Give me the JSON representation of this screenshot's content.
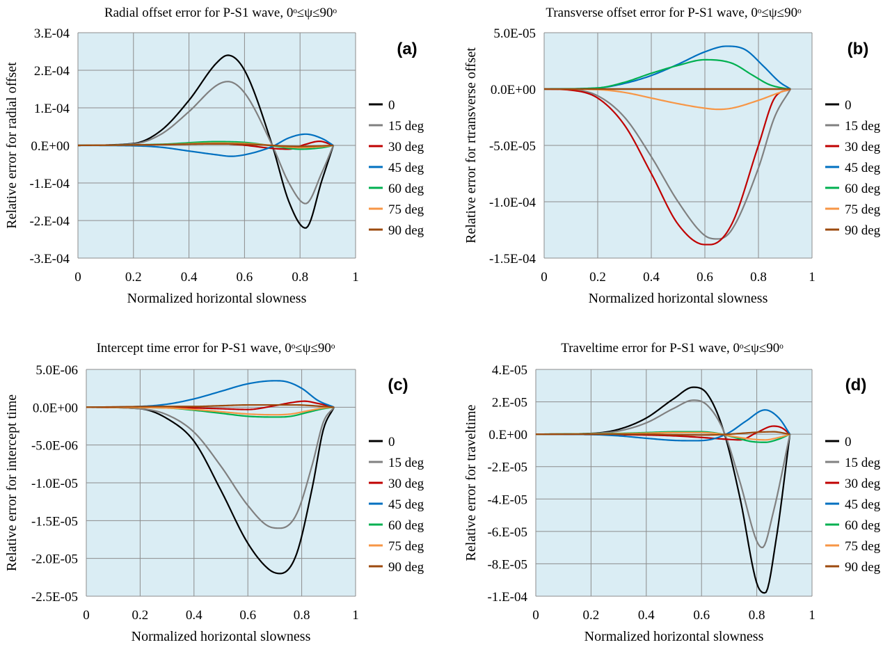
{
  "colors": {
    "plot_background": "#daedf4",
    "grid": "#8c8c8c",
    "series": [
      "#000000",
      "#808080",
      "#c00000",
      "#0070c0",
      "#00b050",
      "#f79646",
      "#9c4a0e"
    ]
  },
  "legend_entries": [
    "0",
    "15 deg",
    "30 deg",
    "45 deg",
    "60 deg",
    "75 deg",
    "90 deg"
  ],
  "chart_data": [
    {
      "id": "a",
      "type": "line",
      "panel_label": "(a)",
      "title": "Radial offset error for P-S1 wave, 0ᵒ≤ψ≤90ᵒ",
      "xlabel": "Normalized horizontal slowness",
      "ylabel": "Relative error for radial offset",
      "xlim": [
        0,
        1
      ],
      "ylim": [
        -0.0003,
        0.0003
      ],
      "xticks": [
        0,
        0.2,
        0.4,
        0.6,
        0.8,
        1
      ],
      "xtick_labels": [
        "0",
        "0.2",
        "0.4",
        "0.6",
        "0.8",
        "1"
      ],
      "yticks": [
        0.0003,
        0.0002,
        0.0001,
        0,
        -0.0001,
        -0.0002,
        -0.0003
      ],
      "ytick_labels": [
        "3.E-04",
        "2.E-04",
        "1.E-04",
        "0.E+00",
        "-1.E-04",
        "-2.E-04",
        "-3.E-04"
      ],
      "grid": true,
      "legend_position": "right",
      "series": [
        {
          "name": "0",
          "x": [
            0,
            0.2,
            0.3,
            0.4,
            0.5,
            0.54,
            0.6,
            0.7,
            0.76,
            0.82,
            0.88,
            0.92
          ],
          "y": [
            0,
            5e-06,
            4e-05,
            0.00012,
            0.00022,
            0.00024,
            0.0002,
            0.0,
            -0.00015,
            -0.00022,
            -9e-05,
            0
          ]
        },
        {
          "name": "15 deg",
          "x": [
            0,
            0.2,
            0.3,
            0.4,
            0.5,
            0.54,
            0.6,
            0.7,
            0.76,
            0.82,
            0.88,
            0.92
          ],
          "y": [
            0,
            4e-06,
            3e-05,
            9e-05,
            0.00016,
            0.00017,
            0.00014,
            0.0,
            -0.0001,
            -0.000155,
            -7e-05,
            0
          ]
        },
        {
          "name": "30 deg",
          "x": [
            0,
            0.3,
            0.5,
            0.6,
            0.7,
            0.76,
            0.82,
            0.87,
            0.92
          ],
          "y": [
            0,
            2e-06,
            5e-06,
            5e-07,
            -8e-06,
            -1e-05,
            3e-06,
            1.1e-05,
            0
          ]
        },
        {
          "name": "45 deg",
          "x": [
            0,
            0.2,
            0.3,
            0.4,
            0.5,
            0.55,
            0.6,
            0.7,
            0.76,
            0.82,
            0.88,
            0.92
          ],
          "y": [
            0,
            -1e-06,
            -5e-06,
            -1.5e-05,
            -2.5e-05,
            -2.9e-05,
            -2.5e-05,
            -3e-06,
            2e-05,
            3e-05,
            1.8e-05,
            0
          ]
        },
        {
          "name": "60 deg",
          "x": [
            0,
            0.3,
            0.5,
            0.6,
            0.7,
            0.8,
            0.88,
            0.92
          ],
          "y": [
            0,
            3e-06,
            1e-05,
            8e-06,
            -1e-06,
            -1e-05,
            -6e-06,
            0
          ]
        },
        {
          "name": "75 deg",
          "x": [
            0,
            0.3,
            0.5,
            0.6,
            0.7,
            0.8,
            0.88,
            0.92
          ],
          "y": [
            0,
            2e-06,
            6e-06,
            5e-06,
            0,
            -6e-06,
            -3e-06,
            0
          ]
        },
        {
          "name": "90 deg",
          "x": [
            0,
            0.3,
            0.5,
            0.6,
            0.7,
            0.8,
            0.88,
            0.92
          ],
          "y": [
            0,
            2e-06,
            4e-06,
            3e-06,
            0,
            -3e-06,
            -1e-06,
            0
          ]
        }
      ]
    },
    {
      "id": "b",
      "type": "line",
      "panel_label": "(b)",
      "title": "Transverse offset error for P-S1 wave, 0ᵒ≤ψ≤90ᵒ",
      "xlabel": "Normalized horizontal slowness",
      "ylabel": "Relative error for rtransverse offset",
      "xlim": [
        0,
        1
      ],
      "ylim": [
        -0.00015,
        5e-05
      ],
      "xticks": [
        0,
        0.2,
        0.4,
        0.6,
        0.8,
        1
      ],
      "xtick_labels": [
        "0",
        "0.2",
        "0.4",
        "0.6",
        "0.8",
        "1"
      ],
      "yticks": [
        5e-05,
        0,
        -5e-05,
        -0.0001,
        -0.00015
      ],
      "ytick_labels": [
        "5.0E-05",
        "0.0E+00",
        "-5.0E-05",
        "-1.0E-04",
        "-1.5E-04"
      ],
      "grid": true,
      "legend_position": "right",
      "series": [
        {
          "name": "0",
          "x": [
            0,
            0.92
          ],
          "y": [
            0,
            0
          ]
        },
        {
          "name": "15 deg",
          "x": [
            0,
            0.1,
            0.2,
            0.3,
            0.4,
            0.5,
            0.6,
            0.65,
            0.7,
            0.8,
            0.86,
            0.92
          ],
          "y": [
            0,
            -5e-07,
            -6e-06,
            -2.5e-05,
            -6e-05,
            -0.0001,
            -0.00013,
            -0.000133,
            -0.000125,
            -7e-05,
            -2.5e-05,
            0
          ]
        },
        {
          "name": "30 deg",
          "x": [
            0,
            0.1,
            0.2,
            0.3,
            0.4,
            0.5,
            0.6,
            0.62,
            0.7,
            0.8,
            0.86,
            0.92
          ],
          "y": [
            0,
            -1e-06,
            -8e-06,
            -3.2e-05,
            -7.5e-05,
            -0.00012,
            -0.000138,
            -0.000138,
            -0.00012,
            -5e-05,
            -8e-06,
            0
          ]
        },
        {
          "name": "45 deg",
          "x": [
            0,
            0.2,
            0.3,
            0.4,
            0.5,
            0.6,
            0.68,
            0.75,
            0.82,
            0.88,
            0.92
          ],
          "y": [
            0,
            1e-06,
            5e-06,
            1.2e-05,
            2.2e-05,
            3.3e-05,
            3.8e-05,
            3.5e-05,
            2e-05,
            6e-06,
            0
          ]
        },
        {
          "name": "60 deg",
          "x": [
            0,
            0.2,
            0.3,
            0.4,
            0.5,
            0.6,
            0.7,
            0.78,
            0.84,
            0.9,
            0.92
          ],
          "y": [
            0,
            1e-06,
            6e-06,
            1.4e-05,
            2.1e-05,
            2.6e-05,
            2.3e-05,
            1.2e-05,
            4e-06,
            5e-07,
            0
          ]
        },
        {
          "name": "75 deg",
          "x": [
            0,
            0.2,
            0.3,
            0.4,
            0.5,
            0.6,
            0.65,
            0.7,
            0.8,
            0.88,
            0.92
          ],
          "y": [
            0,
            -5e-07,
            -3e-06,
            -8e-06,
            -1.3e-05,
            -1.7e-05,
            -1.8e-05,
            -1.7e-05,
            -1e-05,
            -3e-06,
            0
          ]
        },
        {
          "name": "90 deg",
          "x": [
            0,
            0.92
          ],
          "y": [
            0,
            0
          ]
        }
      ]
    },
    {
      "id": "c",
      "type": "line",
      "panel_label": "(c)",
      "title": "Intercept time error for P-S1 wave, 0ᵒ≤ψ≤90ᵒ",
      "xlabel": "Normalized horizontal slowness",
      "ylabel": "Relative error for intercept time",
      "xlim": [
        0,
        1
      ],
      "ylim": [
        -2.5e-05,
        5e-06
      ],
      "xticks": [
        0,
        0.2,
        0.4,
        0.6,
        0.8,
        1
      ],
      "xtick_labels": [
        "0",
        "0.2",
        "0.4",
        "0.6",
        "0.8",
        "1"
      ],
      "yticks": [
        5e-06,
        0,
        -5e-06,
        -1e-05,
        -1.5e-05,
        -2e-05,
        -2.5e-05
      ],
      "ytick_labels": [
        "5.0E-06",
        "0.0E+00",
        "-5.0E-06",
        "-1.0E-05",
        "-1.5E-05",
        "-2.0E-05",
        "-2.5E-05"
      ],
      "grid": true,
      "legend_position": "right",
      "series": [
        {
          "name": "0",
          "x": [
            0,
            0.2,
            0.3,
            0.4,
            0.5,
            0.6,
            0.68,
            0.72,
            0.78,
            0.84,
            0.88,
            0.92
          ],
          "y": [
            0,
            -2e-07,
            -1.5e-06,
            -4.5e-06,
            -1.1e-05,
            -1.8e-05,
            -2.15e-05,
            -2.2e-05,
            -1.95e-05,
            -1.05e-05,
            -3e-06,
            0
          ]
        },
        {
          "name": "15 deg",
          "x": [
            0,
            0.2,
            0.3,
            0.4,
            0.5,
            0.6,
            0.68,
            0.72,
            0.78,
            0.84,
            0.88,
            0.92
          ],
          "y": [
            0,
            -2e-07,
            -1e-06,
            -3.3e-06,
            -7.8e-06,
            -1.3e-05,
            -1.58e-05,
            -1.6e-05,
            -1.42e-05,
            -7.5e-06,
            -2e-06,
            0
          ]
        },
        {
          "name": "30 deg",
          "x": [
            0,
            0.4,
            0.5,
            0.6,
            0.7,
            0.76,
            0.81,
            0.86,
            0.92
          ],
          "y": [
            0,
            -1e-07,
            -2e-07,
            -3e-07,
            2e-07,
            6e-07,
            8e-07,
            5e-07,
            0
          ]
        },
        {
          "name": "45 deg",
          "x": [
            0,
            0.2,
            0.3,
            0.4,
            0.5,
            0.6,
            0.7,
            0.74,
            0.8,
            0.86,
            0.92
          ],
          "y": [
            0,
            1e-07,
            4e-07,
            1.1e-06,
            2.1e-06,
            3.1e-06,
            3.5e-06,
            3.4e-06,
            2.5e-06,
            9e-07,
            0
          ]
        },
        {
          "name": "60 deg",
          "x": [
            0,
            0.3,
            0.4,
            0.5,
            0.6,
            0.7,
            0.76,
            0.82,
            0.88,
            0.92
          ],
          "y": [
            0,
            -1e-07,
            -4e-07,
            -8e-07,
            -1.2e-06,
            -1.3e-06,
            -1.2e-06,
            -7e-07,
            -2e-07,
            0
          ]
        },
        {
          "name": "75 deg",
          "x": [
            0,
            0.3,
            0.4,
            0.5,
            0.6,
            0.7,
            0.76,
            0.82,
            0.88,
            0.92
          ],
          "y": [
            0,
            -1e-07,
            -3e-07,
            -6e-07,
            -9e-07,
            -1e-06,
            -9e-07,
            -5e-07,
            -1e-07,
            0
          ]
        },
        {
          "name": "90 deg",
          "x": [
            0,
            0.3,
            0.4,
            0.5,
            0.6,
            0.7,
            0.78,
            0.84,
            0.9,
            0.92
          ],
          "y": [
            0,
            1e-07,
            1e-07,
            2e-07,
            3e-07,
            3e-07,
            3e-07,
            2e-07,
            5e-08,
            0
          ]
        }
      ]
    },
    {
      "id": "d",
      "type": "line",
      "panel_label": "(d)",
      "title": "Traveltime error for P-S1 wave, 0ᵒ≤ψ≤90ᵒ",
      "xlabel": "Normalized horizontal slowness",
      "ylabel": "Relative error for traveltime",
      "xlim": [
        0,
        1
      ],
      "ylim": [
        -0.0001,
        4e-05
      ],
      "xticks": [
        0,
        0.2,
        0.4,
        0.6,
        0.8,
        1
      ],
      "xtick_labels": [
        "0",
        "0.2",
        "0.4",
        "0.6",
        "0.8",
        "1"
      ],
      "yticks": [
        4e-05,
        2e-05,
        0,
        -2e-05,
        -4e-05,
        -6e-05,
        -8e-05,
        -0.0001
      ],
      "ytick_labels": [
        "4.E-05",
        "2.E-05",
        "0.E+00",
        "-2.E-05",
        "-4.E-05",
        "-6.E-05",
        "-8.E-05",
        "-1.E-04"
      ],
      "grid": true,
      "legend_position": "right",
      "series": [
        {
          "name": "0",
          "x": [
            0,
            0.2,
            0.3,
            0.4,
            0.5,
            0.57,
            0.62,
            0.68,
            0.74,
            0.8,
            0.83,
            0.87,
            0.92
          ],
          "y": [
            0,
            5e-07,
            3e-06,
            1e-05,
            2.2e-05,
            2.9e-05,
            2.5e-05,
            2e-06,
            -4e-05,
            -9.2e-05,
            -9.8e-05,
            -6.5e-05,
            0
          ]
        },
        {
          "name": "15 deg",
          "x": [
            0,
            0.2,
            0.3,
            0.4,
            0.5,
            0.57,
            0.62,
            0.68,
            0.74,
            0.8,
            0.82,
            0.86,
            0.92
          ],
          "y": [
            0,
            4e-07,
            2e-06,
            7e-06,
            1.6e-05,
            2.1e-05,
            1.8e-05,
            2e-06,
            -3e-05,
            -6.6e-05,
            -7e-05,
            -4.8e-05,
            0
          ]
        },
        {
          "name": "30 deg",
          "x": [
            0,
            0.4,
            0.5,
            0.6,
            0.68,
            0.74,
            0.8,
            0.86,
            0.89,
            0.92
          ],
          "y": [
            0,
            -5e-07,
            -1e-06,
            -2e-06,
            -3e-06,
            -3.5e-06,
            1e-06,
            5e-06,
            4e-06,
            0
          ]
        },
        {
          "name": "45 deg",
          "x": [
            0,
            0.2,
            0.3,
            0.4,
            0.5,
            0.58,
            0.64,
            0.7,
            0.76,
            0.83,
            0.88,
            0.92
          ],
          "y": [
            0,
            -2e-07,
            -1e-06,
            -2.5e-06,
            -3.8e-06,
            -4e-06,
            -3e-06,
            1e-06,
            8e-06,
            1.5e-05,
            1e-05,
            0
          ]
        },
        {
          "name": "60 deg",
          "x": [
            0,
            0.3,
            0.4,
            0.5,
            0.6,
            0.66,
            0.72,
            0.78,
            0.83,
            0.88,
            0.92
          ],
          "y": [
            0,
            5e-07,
            1e-06,
            1.5e-06,
            1.5e-06,
            5e-07,
            -2e-06,
            -4.5e-06,
            -5e-06,
            -3e-06,
            0
          ]
        },
        {
          "name": "75 deg",
          "x": [
            0,
            0.3,
            0.4,
            0.5,
            0.6,
            0.66,
            0.72,
            0.78,
            0.83,
            0.88,
            0.92
          ],
          "y": [
            0,
            3e-07,
            6e-07,
            1e-06,
            1e-06,
            3e-07,
            -1.5e-06,
            -3e-06,
            -3.5e-06,
            -2e-06,
            0
          ]
        },
        {
          "name": "90 deg",
          "x": [
            0,
            0.4,
            0.5,
            0.6,
            0.68,
            0.74,
            0.8,
            0.86,
            0.92
          ],
          "y": [
            0,
            0,
            -3e-07,
            -5e-07,
            -2e-07,
            5e-07,
            1.2e-06,
            1.5e-06,
            0
          ]
        }
      ]
    }
  ]
}
